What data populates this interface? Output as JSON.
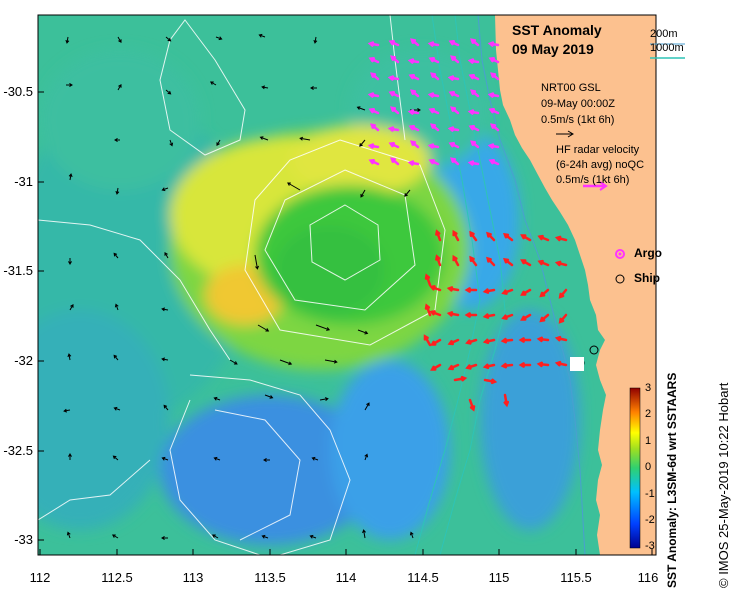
{
  "title": {
    "line1": "SST Anomaly",
    "line2": "09 May 2019"
  },
  "contour_legend": {
    "c200": "200m",
    "c1000": "1000m",
    "c200_color": "#4a9fd0",
    "c1000_color": "#2ec4b6"
  },
  "gsl_legend": {
    "line1": "NRT00 GSL",
    "line2": "09-May 00:00Z",
    "line3": "0.5m/s (1kt 6h)"
  },
  "hf_legend": {
    "line1": "HF radar velocity",
    "line2": "(6-24h avg) noQC",
    "line3": "0.5m/s (1kt 6h)"
  },
  "markers": {
    "argo": "Argo",
    "ship": "Ship"
  },
  "axes": {
    "xticks": [
      "112",
      "112.5",
      "113",
      "113.5",
      "114",
      "114.5",
      "115",
      "115.5",
      "116"
    ],
    "yticks": [
      "-30.5",
      "-31",
      "-31.5",
      "-32",
      "-32.5",
      "-33"
    ]
  },
  "colorbar": {
    "label": "SST Anomaly: L3SM-6d wrt SSTAARS",
    "ticks": [
      "3",
      "2",
      "1",
      "0",
      "-1",
      "-2",
      "-3"
    ]
  },
  "credit": "© IMOS 25-May-2019 10:22 Hobart",
  "colors": {
    "land": "#fcc18f",
    "ocean_base": "#3cc09a",
    "eddy_warm": "#e8e83a",
    "eddy_core": "#3ec83e",
    "cool": "#3a8fe0",
    "hf_arrow": "#ff1f1f",
    "argo": "#ff33ff"
  }
}
